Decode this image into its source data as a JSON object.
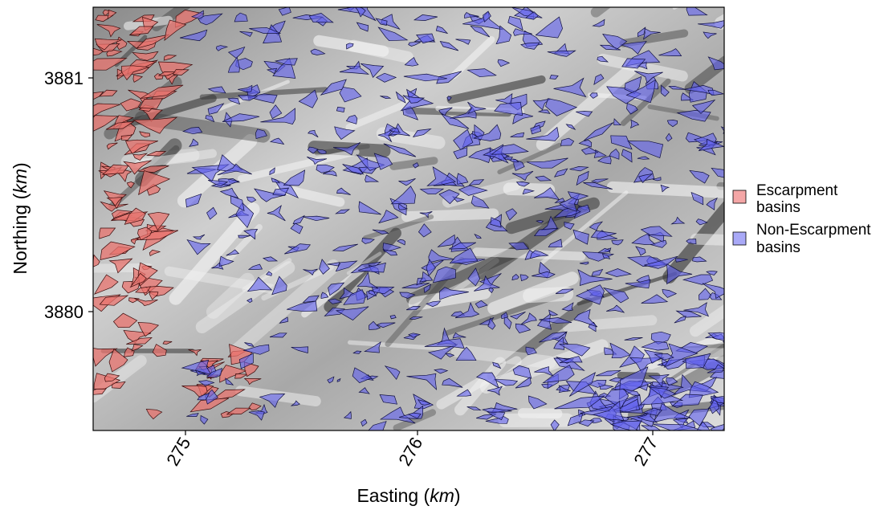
{
  "figure": {
    "x_axis": {
      "label": "Easting",
      "label_unit": "km",
      "ticks": [
        "275",
        "276",
        "277"
      ],
      "range_km": [
        274.6,
        277.3
      ]
    },
    "y_axis": {
      "label": "Northing",
      "label_unit": "km",
      "ticks": [
        "3881",
        "3880"
      ],
      "range_km": [
        3879.5,
        3881.3
      ]
    },
    "legend": {
      "placement": "right",
      "items": [
        {
          "line1": "Escarpment",
          "line2": "basins",
          "color": "#f4a6a6"
        },
        {
          "line1": "Non-Escarpment",
          "line2": "basins",
          "color": "#a9a9f7"
        }
      ]
    },
    "colors": {
      "escarpment_fill": "#e8736e",
      "non_escarpment_fill": "#6262ee",
      "hillshade": "#9a9a9a"
    }
  }
}
